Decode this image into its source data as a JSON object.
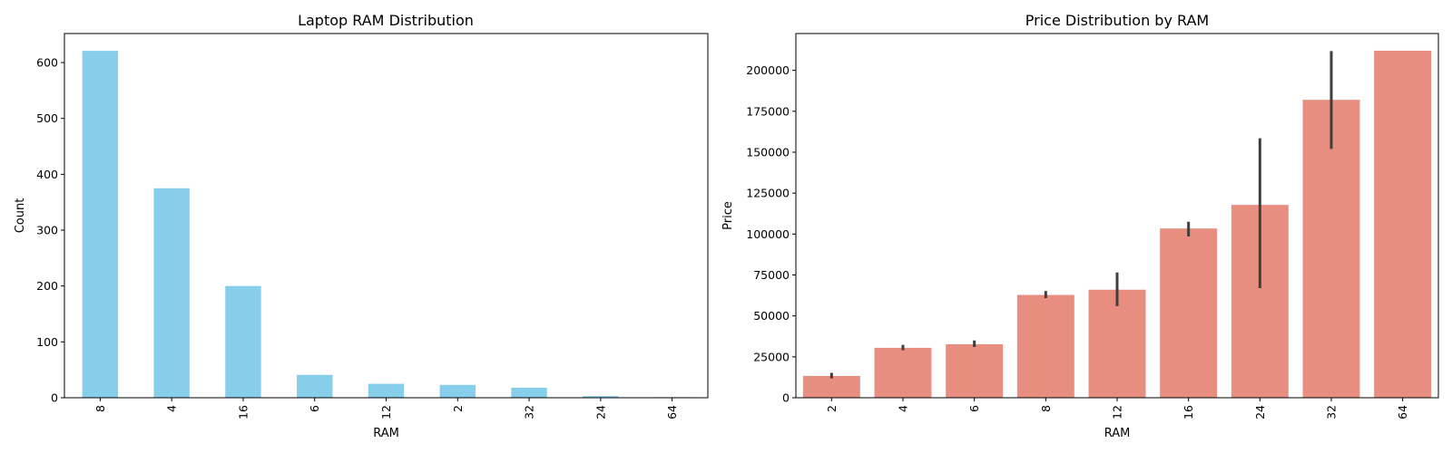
{
  "chart_data": [
    {
      "type": "bar",
      "title": "Laptop RAM Distribution",
      "xlabel": "RAM",
      "ylabel": "Count",
      "categories": [
        "8",
        "4",
        "16",
        "6",
        "12",
        "2",
        "32",
        "24",
        "64"
      ],
      "values": [
        621,
        375,
        200,
        41,
        25,
        23,
        18,
        3,
        1
      ],
      "yticks": [
        0,
        100,
        200,
        300,
        400,
        500,
        600
      ],
      "ylim": [
        0,
        652
      ],
      "color": "#87ceeb",
      "xtick_rotation": "vertical",
      "grid": false
    },
    {
      "type": "bar",
      "title": "Price Distribution by RAM",
      "xlabel": "RAM",
      "ylabel": "Price",
      "categories": [
        "2",
        "4",
        "6",
        "8",
        "12",
        "16",
        "24",
        "32",
        "64"
      ],
      "values": [
        13300,
        30500,
        32700,
        62800,
        66000,
        103400,
        117800,
        182000,
        212000
      ],
      "error_low": [
        11800,
        29000,
        31000,
        60800,
        56000,
        98500,
        67000,
        152000,
        null
      ],
      "error_high": [
        15200,
        32300,
        35000,
        65200,
        76500,
        107500,
        158500,
        211800,
        null
      ],
      "yticks": [
        0,
        25000,
        50000,
        75000,
        100000,
        125000,
        150000,
        175000,
        200000
      ],
      "ylim": [
        0,
        222500
      ],
      "color": "#e88e80",
      "error_color": "#3f3f3f",
      "xtick_rotation": "vertical",
      "grid": false
    }
  ]
}
